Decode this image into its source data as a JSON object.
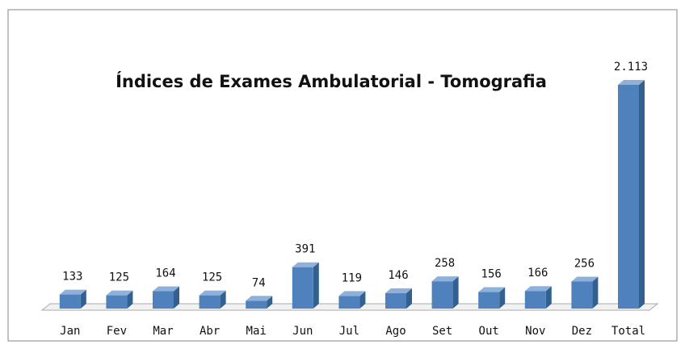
{
  "chart_data": {
    "type": "bar3d",
    "title": "Índices de Exames Ambulatorial - Tomografia",
    "categories": [
      "Jan",
      "Fev",
      "Mar",
      "Abr",
      "Mai",
      "Jun",
      "Jul",
      "Ago",
      "Set",
      "Out",
      "Nov",
      "Dez",
      "Total"
    ],
    "values": [
      133,
      125,
      164,
      125,
      74,
      391,
      119,
      146,
      258,
      156,
      166,
      256,
      2113
    ],
    "value_labels": [
      "133",
      "125",
      "164",
      "125",
      "74",
      "391",
      "119",
      "146",
      "258",
      "156",
      "166",
      "256",
      "2.113"
    ],
    "color": "#4f81bd"
  }
}
